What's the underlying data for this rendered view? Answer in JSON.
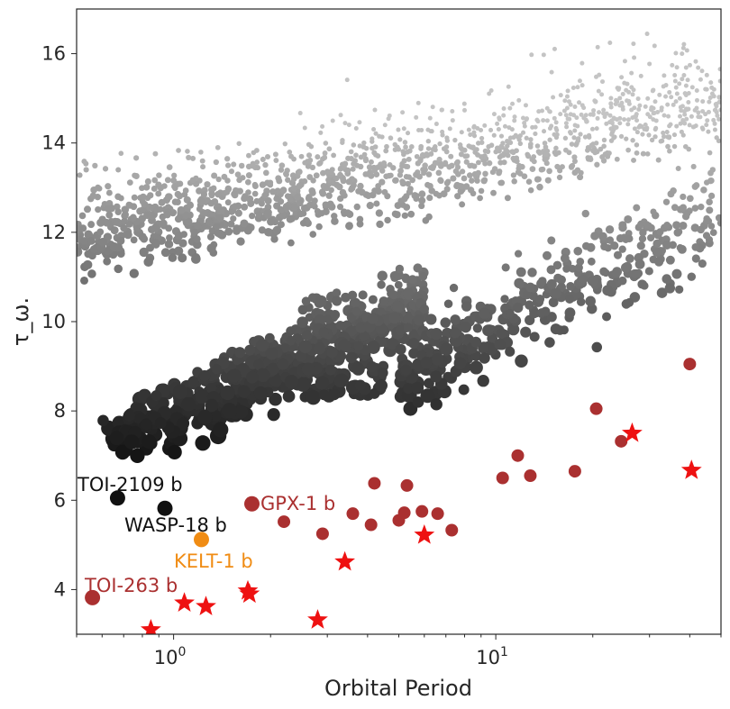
{
  "chart_data": {
    "type": "scatter",
    "x_scale": "log",
    "xlabel": "Orbital Period",
    "ylabel": "τ_ω.",
    "xlim": [
      0.5,
      50
    ],
    "ylim": [
      3.0,
      17.0
    ],
    "x_tick_labels": [
      {
        "value": 1,
        "base": "10",
        "exp": "0"
      },
      {
        "value": 10,
        "base": "10",
        "exp": "1"
      }
    ],
    "y_ticks": [
      4,
      6,
      8,
      10,
      12,
      14,
      16
    ],
    "grid": false,
    "colors": {
      "population_light": "#c4c4c4",
      "population_dark": "#101010",
      "highlight_red": "#aa3030",
      "kelt_orange": "#f08c14",
      "star_red": "#ee1111",
      "annotation_black": "#111111"
    },
    "background_population": {
      "description_free": true,
      "clusters": [
        {
          "x_range": [
            0.5,
            50
          ],
          "y_trend": [
            11.8,
            14.8
          ],
          "spread": 1.2,
          "shade": "light"
        },
        {
          "x_range": [
            0.6,
            6
          ],
          "y_trend": [
            7.2,
            10.5
          ],
          "spread": 1.0,
          "shade": "dark"
        },
        {
          "x_range": [
            5,
            50
          ],
          "y_trend": [
            8.8,
            12.5
          ],
          "spread": 1.4,
          "shade": "mid"
        }
      ]
    },
    "highlighted_planets": [
      {
        "name": "TOI-2109 b",
        "x": 0.67,
        "y": 6.05,
        "color": "#111111"
      },
      {
        "name": "WASP-18 b",
        "x": 0.94,
        "y": 5.82,
        "color": "#111111"
      },
      {
        "name": "KELT-1 b",
        "x": 1.22,
        "y": 5.12,
        "color": "#f08c14"
      },
      {
        "name": "TOI-263 b",
        "x": 0.56,
        "y": 3.82,
        "color": "#aa3030"
      },
      {
        "name": "GPX-1 b",
        "x": 1.75,
        "y": 5.92,
        "color": "#aa3030"
      }
    ],
    "red_points": [
      [
        2.2,
        5.52
      ],
      [
        2.9,
        5.25
      ],
      [
        3.6,
        5.7
      ],
      [
        4.1,
        5.45
      ],
      [
        4.2,
        6.38
      ],
      [
        5.0,
        5.55
      ],
      [
        5.2,
        5.72
      ],
      [
        5.3,
        6.33
      ],
      [
        5.9,
        5.75
      ],
      [
        6.6,
        5.7
      ],
      [
        7.3,
        5.33
      ],
      [
        10.5,
        6.5
      ],
      [
        11.7,
        7.0
      ],
      [
        12.8,
        6.55
      ],
      [
        17.6,
        6.65
      ],
      [
        20.5,
        8.05
      ],
      [
        24.5,
        7.32
      ],
      [
        40.0,
        9.05
      ]
    ],
    "star_points": [
      [
        0.85,
        3.1
      ],
      [
        1.08,
        3.7
      ],
      [
        1.26,
        3.62
      ],
      [
        1.7,
        3.97
      ],
      [
        1.72,
        3.9
      ],
      [
        2.8,
        3.32
      ],
      [
        3.4,
        4.62
      ],
      [
        6.0,
        5.22
      ],
      [
        26.5,
        7.5
      ],
      [
        40.5,
        6.67
      ]
    ]
  }
}
